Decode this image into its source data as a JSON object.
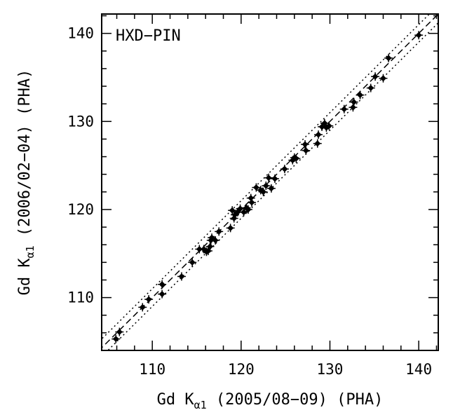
{
  "chart_data": {
    "type": "scatter",
    "annotation": "HXD−PIN",
    "xlabel": {
      "pre": "Gd K",
      "sub": "α1",
      "post": " (2005/08−09) (PHA)"
    },
    "ylabel": {
      "pre": "Gd K",
      "sub": "α1",
      "post": " (2006/02−04) (PHA)"
    },
    "xlim": [
      104.3,
      142.2
    ],
    "ylim": [
      104.0,
      142.2
    ],
    "x_ticks": [
      "110",
      "120",
      "130",
      "140"
    ],
    "y_ticks": [
      "110",
      "120",
      "130",
      "140"
    ],
    "x_tick_values": [
      110,
      120,
      130,
      140
    ],
    "y_tick_values": [
      110,
      120,
      130,
      140
    ],
    "reference_lines": [
      {
        "name": "",
        "style": "dashed",
        "intercept": 0
      },
      {
        "name": "",
        "style": "dotted",
        "intercept": 1.0
      },
      {
        "name": "",
        "style": "dotted",
        "intercept": -1.0
      }
    ],
    "points": [
      [
        105.9,
        105.3
      ],
      [
        106.3,
        106.1
      ],
      [
        108.9,
        108.9
      ],
      [
        109.6,
        109.8
      ],
      [
        111.1,
        111.5
      ],
      [
        111.1,
        110.4
      ],
      [
        113.3,
        112.4
      ],
      [
        114.5,
        114.0
      ],
      [
        115.3,
        115.5
      ],
      [
        115.8,
        115.5
      ],
      [
        116.1,
        115.2
      ],
      [
        116.3,
        115.3
      ],
      [
        116.5,
        115.8
      ],
      [
        116.6,
        116.5
      ],
      [
        116.7,
        116.8
      ],
      [
        117.1,
        116.5
      ],
      [
        117.5,
        117.5
      ],
      [
        118.8,
        117.9
      ],
      [
        119.0,
        119.9
      ],
      [
        119.2,
        119.0
      ],
      [
        119.3,
        119.4
      ],
      [
        119.6,
        119.7
      ],
      [
        119.9,
        120.1
      ],
      [
        120.3,
        119.7
      ],
      [
        120.6,
        120.2
      ],
      [
        120.8,
        120.0
      ],
      [
        121.1,
        121.3
      ],
      [
        121.2,
        120.8
      ],
      [
        121.7,
        122.5
      ],
      [
        122.2,
        122.2
      ],
      [
        122.5,
        122.0
      ],
      [
        122.8,
        122.7
      ],
      [
        123.1,
        123.6
      ],
      [
        123.4,
        122.4
      ],
      [
        123.8,
        123.5
      ],
      [
        124.9,
        124.6
      ],
      [
        125.8,
        125.6
      ],
      [
        126.0,
        125.9
      ],
      [
        126.2,
        125.8
      ],
      [
        127.2,
        127.4
      ],
      [
        127.3,
        126.7
      ],
      [
        128.6,
        127.5
      ],
      [
        128.7,
        128.5
      ],
      [
        129.1,
        129.4
      ],
      [
        129.4,
        129.8
      ],
      [
        129.6,
        129.3
      ],
      [
        129.9,
        129.5
      ],
      [
        131.6,
        131.4
      ],
      [
        132.6,
        131.6
      ],
      [
        132.7,
        132.2
      ],
      [
        133.4,
        133.0
      ],
      [
        134.6,
        133.8
      ],
      [
        135.1,
        135.1
      ],
      [
        136.0,
        134.9
      ],
      [
        136.6,
        137.2
      ],
      [
        140.0,
        139.8
      ]
    ]
  }
}
